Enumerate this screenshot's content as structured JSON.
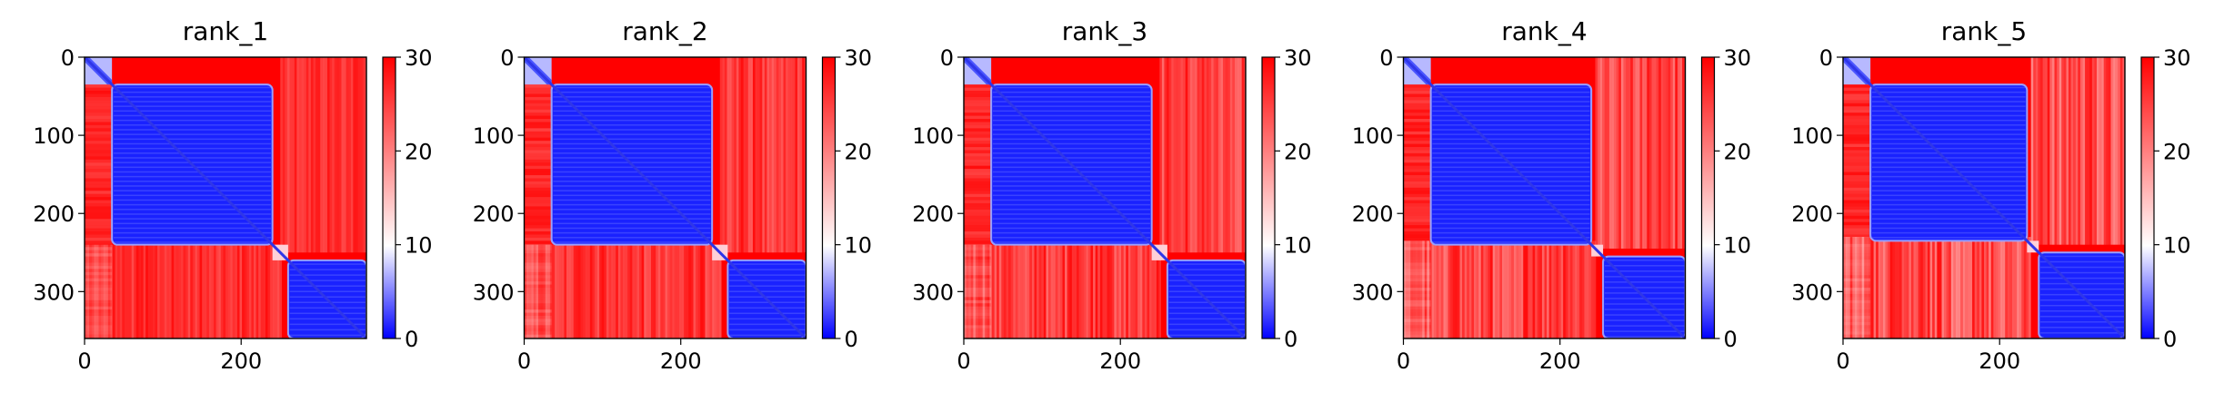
{
  "chart_data": [
    {
      "type": "heatmap",
      "title": "rank_1",
      "matrix_size": 360,
      "x_ticks": [
        0,
        200
      ],
      "y_ticks": [
        0,
        100,
        200,
        300
      ],
      "blocks": {
        "n_terminal_end": 35,
        "domain1_end": 240,
        "linker_end": 260,
        "domain2_end": 360
      },
      "colorbar": {
        "min": 0,
        "max": 30,
        "ticks": [
          0,
          10,
          20,
          30
        ],
        "colors": [
          "#0000ff",
          "#ffffff",
          "#ff0000"
        ]
      }
    },
    {
      "type": "heatmap",
      "title": "rank_2",
      "matrix_size": 360,
      "x_ticks": [
        0,
        200
      ],
      "y_ticks": [
        0,
        100,
        200,
        300
      ],
      "blocks": {
        "n_terminal_end": 35,
        "domain1_end": 240,
        "linker_end": 260,
        "domain2_end": 360
      },
      "colorbar": {
        "min": 0,
        "max": 30,
        "ticks": [
          0,
          10,
          20,
          30
        ],
        "colors": [
          "#0000ff",
          "#ffffff",
          "#ff0000"
        ]
      }
    },
    {
      "type": "heatmap",
      "title": "rank_3",
      "matrix_size": 360,
      "x_ticks": [
        0,
        200
      ],
      "y_ticks": [
        0,
        100,
        200,
        300
      ],
      "blocks": {
        "n_terminal_end": 35,
        "domain1_end": 240,
        "linker_end": 260,
        "domain2_end": 360
      },
      "colorbar": {
        "min": 0,
        "max": 30,
        "ticks": [
          0,
          10,
          20,
          30
        ],
        "colors": [
          "#0000ff",
          "#ffffff",
          "#ff0000"
        ]
      }
    },
    {
      "type": "heatmap",
      "title": "rank_4",
      "matrix_size": 360,
      "x_ticks": [
        0,
        200
      ],
      "y_ticks": [
        0,
        100,
        200,
        300
      ],
      "blocks": {
        "n_terminal_end": 35,
        "domain1_end": 240,
        "linker_end": 255,
        "domain2_end": 360
      },
      "colorbar": {
        "min": 0,
        "max": 30,
        "ticks": [
          0,
          10,
          20,
          30
        ],
        "colors": [
          "#0000ff",
          "#ffffff",
          "#ff0000"
        ]
      }
    },
    {
      "type": "heatmap",
      "title": "rank_5",
      "matrix_size": 360,
      "x_ticks": [
        0,
        200
      ],
      "y_ticks": [
        0,
        100,
        200,
        300
      ],
      "blocks": {
        "n_terminal_end": 35,
        "domain1_end": 235,
        "linker_end": 250,
        "domain2_end": 360
      },
      "colorbar": {
        "min": 0,
        "max": 30,
        "ticks": [
          0,
          10,
          20,
          30
        ],
        "colors": [
          "#0000ff",
          "#ffffff",
          "#ff0000"
        ]
      }
    }
  ]
}
